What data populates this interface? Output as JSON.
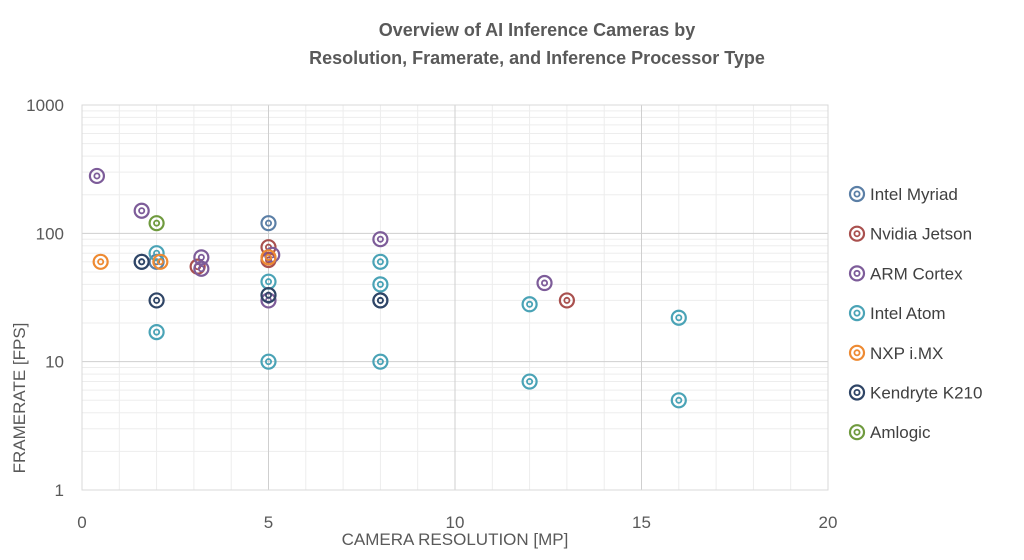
{
  "chart_data": {
    "type": "scatter",
    "title": [
      "Overview of AI Inference Cameras by",
      "Resolution, Framerate, and Inference Processor Type"
    ],
    "xlabel": "CAMERA RESOLUTION [MP]",
    "ylabel": "FRAMERATE [FPS]",
    "xlim": [
      0,
      20
    ],
    "ylim": [
      1,
      1000
    ],
    "yscale": "log",
    "x_ticks": [
      "0",
      "5",
      "10",
      "15",
      "20"
    ],
    "y_ticks": [
      "1",
      "10",
      "100",
      "1000"
    ],
    "grid": true,
    "legend_position": "right",
    "series": [
      {
        "name": "Intel Myriad",
        "color": "#5b7fa6",
        "points": [
          [
            1.6,
            60
          ],
          [
            2,
            60
          ],
          [
            5,
            120
          ],
          [
            8,
            30
          ]
        ]
      },
      {
        "name": "Nvidia Jetson",
        "color": "#a9504e",
        "points": [
          [
            3.1,
            55
          ],
          [
            5,
            78
          ],
          [
            5,
            62
          ],
          [
            13,
            30
          ]
        ]
      },
      {
        "name": "ARM Cortex",
        "color": "#7d5c99",
        "points": [
          [
            0.4,
            280
          ],
          [
            1.6,
            150
          ],
          [
            3.2,
            65
          ],
          [
            3.2,
            53
          ],
          [
            5,
            30
          ],
          [
            5.1,
            68
          ],
          [
            8,
            90
          ],
          [
            12.4,
            41
          ]
        ]
      },
      {
        "name": "Intel Atom",
        "color": "#4aa3b6",
        "points": [
          [
            2,
            70
          ],
          [
            2,
            17
          ],
          [
            5,
            42
          ],
          [
            5,
            10
          ],
          [
            8,
            60
          ],
          [
            8,
            40
          ],
          [
            8,
            10
          ],
          [
            12,
            28
          ],
          [
            12,
            7
          ],
          [
            16,
            22
          ],
          [
            16,
            5
          ]
        ]
      },
      {
        "name": "NXP i.MX",
        "color": "#ee8a32",
        "points": [
          [
            0.5,
            60
          ],
          [
            2.1,
            60
          ],
          [
            5,
            65
          ]
        ]
      },
      {
        "name": "Kendryte K210",
        "color": "#2f4566",
        "points": [
          [
            1.6,
            60
          ],
          [
            2,
            30
          ],
          [
            5,
            33
          ],
          [
            8,
            30
          ]
        ]
      },
      {
        "name": "Amlogic",
        "color": "#6f9a3e",
        "points": [
          [
            2,
            120
          ]
        ]
      }
    ]
  }
}
